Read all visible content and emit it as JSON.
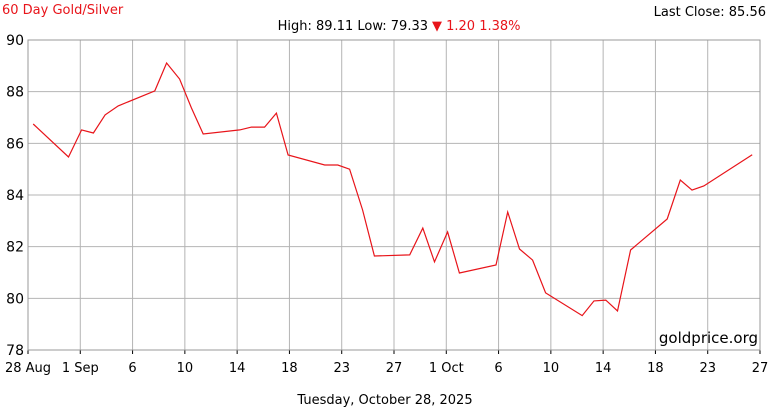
{
  "chart_data": {
    "type": "line",
    "title": "60 Day Gold/Silver",
    "stats": "High: 89.11 Low: 79.33",
    "change": "▼ 1.20 1.38%",
    "last_close": "Last Close: 85.56",
    "watermark": "goldprice.org",
    "xlabel": "Tuesday, October 28, 2025",
    "grid": true,
    "series": [
      {
        "color": "#e8141a",
        "x": [
          0.4,
          3.1,
          4.1,
          5.0,
          5.9,
          6.9,
          9.7,
          10.6,
          11.6,
          12.5,
          13.4,
          16.2,
          17.1,
          18.1,
          19.0,
          19.9,
          22.7,
          23.7,
          24.6,
          25.6,
          26.5,
          29.2,
          30.2,
          31.1,
          32.1,
          33.0,
          35.8,
          36.7,
          37.6,
          38.6,
          39.6,
          42.4,
          43.3,
          44.2,
          45.1,
          46.1,
          48.9,
          49.9,
          50.8,
          51.7,
          55.4
        ],
        "values": [
          86.75,
          85.47,
          86.52,
          86.4,
          87.1,
          87.45,
          88.03,
          89.11,
          88.49,
          87.37,
          86.36,
          86.52,
          86.63,
          86.63,
          87.17,
          85.55,
          85.16,
          85.16,
          85.0,
          83.42,
          81.64,
          81.68,
          82.72,
          81.41,
          82.57,
          80.98,
          81.29,
          83.34,
          81.91,
          81.48,
          80.21,
          79.33,
          79.9,
          79.93,
          79.51,
          81.87,
          83.07,
          84.58,
          84.19,
          84.35,
          85.56
        ]
      }
    ],
    "xlim": [
      0,
      56
    ],
    "xticks": [
      {
        "value": 0,
        "label": "28 Aug"
      },
      {
        "value": 4,
        "label": "1 Sep"
      },
      {
        "value": 8,
        "label": "6"
      },
      {
        "value": 12,
        "label": "10"
      },
      {
        "value": 16,
        "label": "14"
      },
      {
        "value": 20,
        "label": "18"
      },
      {
        "value": 24,
        "label": "23"
      },
      {
        "value": 28,
        "label": "27"
      },
      {
        "value": 32,
        "label": "1 Oct"
      },
      {
        "value": 36,
        "label": "6"
      },
      {
        "value": 40,
        "label": "10"
      },
      {
        "value": 44,
        "label": "14"
      },
      {
        "value": 48,
        "label": "18"
      },
      {
        "value": 52,
        "label": "23"
      },
      {
        "value": 56,
        "label": "27"
      }
    ],
    "ylim": [
      78,
      90
    ],
    "yticks": [
      78,
      80,
      82,
      84,
      86,
      88,
      90
    ]
  }
}
